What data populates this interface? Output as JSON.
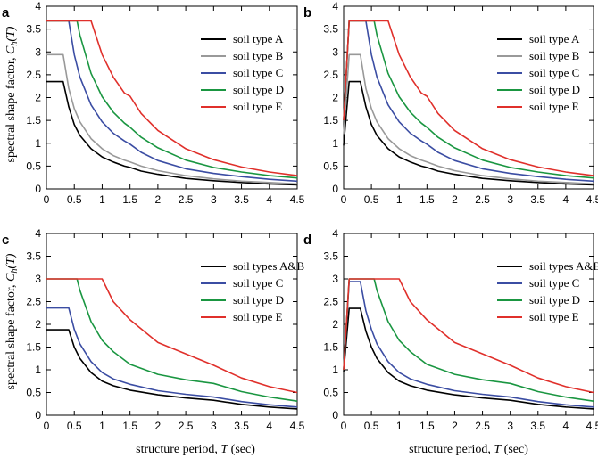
{
  "figure": {
    "ylabel_text": "spectral shape factor, ",
    "ylabel_symbol": "C",
    "ylabel_sub": "h",
    "ylabel_arg": "(T)",
    "xlabel_text": "structure period, ",
    "xlabel_symbol": "T",
    "xlabel_unit": " (sec)"
  },
  "colors": {
    "black": "#000000",
    "gray": "#999999",
    "blue": "#3b4da3",
    "green": "#1a9641",
    "red": "#e0302b"
  },
  "chart_data": [
    {
      "panel": "a",
      "type": "line",
      "xlim": [
        0,
        4.5
      ],
      "ylim": [
        0,
        4
      ],
      "xticks": [
        "0",
        "0.5",
        "1",
        "1.5",
        "2",
        "2.5",
        "3",
        "3.5",
        "4",
        "4.5"
      ],
      "yticks": [
        "0",
        "0.5",
        "1",
        "1.5",
        "2",
        "2.5",
        "3",
        "3.5",
        "4"
      ],
      "legend_position": "top-right",
      "series": [
        {
          "name": "soil type A",
          "color": "#000000",
          "x": [
            0,
            0.3,
            0.4,
            0.5,
            0.6,
            0.8,
            1.0,
            1.2,
            1.4,
            1.5,
            1.7,
            2.0,
            2.5,
            3.0,
            3.5,
            4.0,
            4.5
          ],
          "y": [
            2.35,
            2.35,
            1.8,
            1.41,
            1.17,
            0.88,
            0.7,
            0.59,
            0.5,
            0.47,
            0.39,
            0.32,
            0.23,
            0.18,
            0.14,
            0.11,
            0.09
          ]
        },
        {
          "name": "soil type B",
          "color": "#999999",
          "x": [
            0,
            0.3,
            0.4,
            0.5,
            0.6,
            0.8,
            1.0,
            1.2,
            1.4,
            1.5,
            1.7,
            2.0,
            2.5,
            3.0,
            3.5,
            4.0,
            4.5
          ],
          "y": [
            2.94,
            2.94,
            2.2,
            1.76,
            1.47,
            1.1,
            0.88,
            0.73,
            0.63,
            0.59,
            0.5,
            0.4,
            0.29,
            0.22,
            0.17,
            0.14,
            0.11
          ]
        },
        {
          "name": "soil type C",
          "color": "#3b4da3",
          "x": [
            0,
            0.4,
            0.5,
            0.6,
            0.8,
            1.0,
            1.2,
            1.4,
            1.5,
            1.7,
            2.0,
            2.5,
            3.0,
            3.5,
            4.0,
            4.5
          ],
          "y": [
            3.68,
            3.68,
            2.94,
            2.45,
            1.84,
            1.47,
            1.22,
            1.05,
            0.98,
            0.8,
            0.62,
            0.44,
            0.34,
            0.27,
            0.21,
            0.17
          ]
        },
        {
          "name": "soil type D",
          "color": "#1a9641",
          "x": [
            0,
            0.55,
            0.6,
            0.8,
            1.0,
            1.2,
            1.4,
            1.5,
            1.7,
            2.0,
            2.5,
            3.0,
            3.5,
            4.0,
            4.5
          ],
          "y": [
            3.68,
            3.68,
            3.37,
            2.53,
            2.02,
            1.68,
            1.44,
            1.35,
            1.13,
            0.9,
            0.63,
            0.47,
            0.37,
            0.29,
            0.24
          ]
        },
        {
          "name": "soil type E",
          "color": "#e0302b",
          "x": [
            0,
            0.8,
            1.0,
            1.2,
            1.4,
            1.5,
            1.7,
            2.0,
            2.5,
            3.0,
            3.5,
            4.0,
            4.5
          ],
          "y": [
            3.68,
            3.68,
            2.94,
            2.45,
            2.1,
            2.03,
            1.65,
            1.28,
            0.88,
            0.64,
            0.48,
            0.37,
            0.29
          ]
        }
      ]
    },
    {
      "panel": "b",
      "type": "line",
      "xlim": [
        0,
        4.5
      ],
      "ylim": [
        0,
        4
      ],
      "xticks": [
        "0",
        "0.5",
        "1",
        "1.5",
        "2",
        "2.5",
        "3",
        "3.5",
        "4",
        "4.5"
      ],
      "yticks": [
        "0",
        "0.5",
        "1",
        "1.5",
        "2",
        "2.5",
        "3",
        "3.5",
        "4"
      ],
      "legend_position": "top-right",
      "series": [
        {
          "name": "soil type A",
          "color": "#000000",
          "x": [
            0,
            0.1,
            0.3,
            0.4,
            0.5,
            0.6,
            0.8,
            1.0,
            1.2,
            1.4,
            1.5,
            1.7,
            2.0,
            2.5,
            3.0,
            3.5,
            4.0,
            4.5
          ],
          "y": [
            0.95,
            2.35,
            2.35,
            1.8,
            1.41,
            1.17,
            0.88,
            0.7,
            0.59,
            0.5,
            0.47,
            0.39,
            0.32,
            0.23,
            0.18,
            0.14,
            0.11,
            0.09
          ]
        },
        {
          "name": "soil type B",
          "color": "#999999",
          "x": [
            0,
            0.1,
            0.3,
            0.4,
            0.5,
            0.6,
            0.8,
            1.0,
            1.2,
            1.4,
            1.5,
            1.7,
            2.0,
            2.5,
            3.0,
            3.5,
            4.0,
            4.5
          ],
          "y": [
            1.2,
            2.94,
            2.94,
            2.2,
            1.76,
            1.47,
            1.1,
            0.88,
            0.73,
            0.63,
            0.59,
            0.5,
            0.4,
            0.29,
            0.22,
            0.17,
            0.14,
            0.11
          ]
        },
        {
          "name": "soil type C",
          "color": "#3b4da3",
          "x": [
            0,
            0.1,
            0.4,
            0.5,
            0.6,
            0.8,
            1.0,
            1.2,
            1.4,
            1.5,
            1.7,
            2.0,
            2.5,
            3.0,
            3.5,
            4.0,
            4.5
          ],
          "y": [
            1.5,
            3.68,
            3.68,
            2.94,
            2.45,
            1.84,
            1.47,
            1.22,
            1.05,
            0.98,
            0.8,
            0.62,
            0.44,
            0.34,
            0.27,
            0.21,
            0.17
          ]
        },
        {
          "name": "soil type D",
          "color": "#1a9641",
          "x": [
            0,
            0.1,
            0.55,
            0.6,
            0.8,
            1.0,
            1.2,
            1.4,
            1.5,
            1.7,
            2.0,
            2.5,
            3.0,
            3.5,
            4.0,
            4.5
          ],
          "y": [
            1.5,
            3.68,
            3.68,
            3.37,
            2.53,
            2.02,
            1.68,
            1.44,
            1.35,
            1.13,
            0.9,
            0.63,
            0.47,
            0.37,
            0.29,
            0.24
          ]
        },
        {
          "name": "soil type E",
          "color": "#e0302b",
          "x": [
            0,
            0.1,
            0.8,
            1.0,
            1.2,
            1.4,
            1.5,
            1.7,
            2.0,
            2.5,
            3.0,
            3.5,
            4.0,
            4.5
          ],
          "y": [
            1.5,
            3.68,
            3.68,
            2.94,
            2.45,
            2.1,
            2.03,
            1.65,
            1.28,
            0.88,
            0.64,
            0.48,
            0.37,
            0.29
          ]
        }
      ]
    },
    {
      "panel": "c",
      "type": "line",
      "xlim": [
        0,
        4.5
      ],
      "ylim": [
        0,
        4
      ],
      "xticks": [
        "0",
        "0.5",
        "1",
        "1.5",
        "2",
        "2.5",
        "3",
        "3.5",
        "4",
        "4.5"
      ],
      "yticks": [
        "0",
        "0.5",
        "1",
        "1.5",
        "2",
        "2.5",
        "3",
        "3.5",
        "4"
      ],
      "legend_position": "top-right",
      "series": [
        {
          "name": "soil types A&B",
          "color": "#000000",
          "x": [
            0,
            0.4,
            0.5,
            0.6,
            0.8,
            1.0,
            1.2,
            1.5,
            2.0,
            2.5,
            3.0,
            3.5,
            4.0,
            4.5
          ],
          "y": [
            1.88,
            1.88,
            1.5,
            1.25,
            0.94,
            0.75,
            0.65,
            0.55,
            0.45,
            0.38,
            0.33,
            0.24,
            0.18,
            0.14
          ]
        },
        {
          "name": "soil type C",
          "color": "#3b4da3",
          "x": [
            0,
            0.4,
            0.5,
            0.6,
            0.8,
            1.0,
            1.2,
            1.5,
            2.0,
            2.5,
            3.0,
            3.5,
            4.0,
            4.5
          ],
          "y": [
            2.36,
            2.36,
            1.89,
            1.57,
            1.18,
            0.94,
            0.8,
            0.68,
            0.54,
            0.46,
            0.4,
            0.3,
            0.23,
            0.18
          ]
        },
        {
          "name": "soil type D",
          "color": "#1a9641",
          "x": [
            0,
            0.55,
            0.6,
            0.8,
            1.0,
            1.2,
            1.5,
            2.0,
            2.5,
            3.0,
            3.5,
            4.0,
            4.5
          ],
          "y": [
            3.0,
            3.0,
            2.75,
            2.06,
            1.65,
            1.4,
            1.12,
            0.9,
            0.78,
            0.7,
            0.52,
            0.4,
            0.31
          ]
        },
        {
          "name": "soil type E",
          "color": "#e0302b",
          "x": [
            0,
            1.0,
            1.2,
            1.5,
            2.0,
            2.5,
            3.0,
            3.5,
            4.0,
            4.5
          ],
          "y": [
            3.0,
            3.0,
            2.5,
            2.1,
            1.6,
            1.35,
            1.1,
            0.82,
            0.63,
            0.5
          ]
        }
      ]
    },
    {
      "panel": "d",
      "type": "line",
      "xlim": [
        0,
        4.5
      ],
      "ylim": [
        0,
        4
      ],
      "xticks": [
        "0",
        "0.5",
        "1",
        "1.5",
        "2",
        "2.5",
        "3",
        "3.5",
        "4",
        "4.5"
      ],
      "yticks": [
        "0",
        "0.5",
        "1",
        "1.5",
        "2",
        "2.5",
        "3",
        "3.5",
        "4"
      ],
      "legend_position": "top-right",
      "series": [
        {
          "name": "soil types A&B",
          "color": "#000000",
          "x": [
            0,
            0.1,
            0.3,
            0.4,
            0.5,
            0.6,
            0.8,
            1.0,
            1.2,
            1.5,
            2.0,
            2.5,
            3.0,
            3.5,
            4.0,
            4.5
          ],
          "y": [
            0.95,
            2.35,
            2.35,
            1.85,
            1.5,
            1.25,
            0.94,
            0.75,
            0.65,
            0.55,
            0.45,
            0.38,
            0.33,
            0.24,
            0.18,
            0.14
          ]
        },
        {
          "name": "soil type C",
          "color": "#3b4da3",
          "x": [
            0,
            0.1,
            0.3,
            0.4,
            0.5,
            0.6,
            0.8,
            1.0,
            1.2,
            1.5,
            2.0,
            2.5,
            3.0,
            3.5,
            4.0,
            4.5
          ],
          "y": [
            1.0,
            2.94,
            2.94,
            2.3,
            1.89,
            1.57,
            1.18,
            0.94,
            0.8,
            0.68,
            0.54,
            0.46,
            0.4,
            0.3,
            0.23,
            0.18
          ]
        },
        {
          "name": "soil type D",
          "color": "#1a9641",
          "x": [
            0,
            0.1,
            0.55,
            0.6,
            0.8,
            1.0,
            1.2,
            1.5,
            2.0,
            2.5,
            3.0,
            3.5,
            4.0,
            4.5
          ],
          "y": [
            1.0,
            3.0,
            3.0,
            2.75,
            2.06,
            1.65,
            1.4,
            1.12,
            0.9,
            0.78,
            0.7,
            0.52,
            0.4,
            0.31
          ]
        },
        {
          "name": "soil type E",
          "color": "#e0302b",
          "x": [
            0,
            0.1,
            1.0,
            1.2,
            1.5,
            2.0,
            2.5,
            3.0,
            3.5,
            4.0,
            4.5
          ],
          "y": [
            1.0,
            3.0,
            3.0,
            2.5,
            2.1,
            1.6,
            1.35,
            1.1,
            0.82,
            0.63,
            0.5
          ]
        }
      ]
    }
  ]
}
